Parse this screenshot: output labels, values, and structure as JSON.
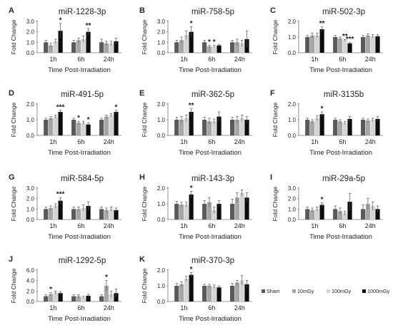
{
  "figure": {
    "series_names": [
      "Sham",
      "10mGy",
      "100mGy",
      "1000mGy"
    ],
    "series_colors": [
      "#5a5a5a",
      "#a6a6a6",
      "#d4d4d4",
      "#0d0d0d"
    ],
    "xlabel": "Time Post-Irradiation",
    "ylabel": "Fold Change"
  },
  "chart_data": [
    {
      "type": "bar",
      "panel_letter": "A",
      "title": "miR-1228-3p",
      "categories": [
        "1h",
        "6h",
        "24h"
      ],
      "series": [
        {
          "name": "Sham",
          "values": [
            1.0,
            1.0,
            1.0
          ]
        },
        {
          "name": "10mGy",
          "values": [
            0.7,
            1.2,
            0.9
          ]
        },
        {
          "name": "100mGy",
          "values": [
            1.1,
            1.3,
            0.9
          ]
        },
        {
          "name": "1000mGy",
          "values": [
            2.1,
            2.0,
            1.1
          ]
        }
      ],
      "errors": [
        [
          0.2,
          0.2,
          0.3
        ],
        [
          0.2,
          0.2,
          0.2
        ],
        [
          0.2,
          0.3,
          0.2
        ],
        [
          0.7,
          0.3,
          0.3
        ]
      ],
      "significance": [
        [
          "",
          "",
          "",
          "*"
        ],
        [
          "",
          "",
          "",
          "**"
        ],
        [
          "",
          "",
          "",
          ""
        ]
      ],
      "yticks": [
        "0.0",
        "1.0",
        "2.0",
        "3.0"
      ],
      "ylim": [
        0,
        3
      ]
    },
    {
      "type": "bar",
      "panel_letter": "B",
      "title": "miR-758-5p",
      "categories": [
        "1h",
        "6h",
        "24h"
      ],
      "series": [
        {
          "name": "Sham",
          "values": [
            1.0,
            1.0,
            1.0
          ]
        },
        {
          "name": "10mGy",
          "values": [
            1.2,
            0.6,
            1.0
          ]
        },
        {
          "name": "100mGy",
          "values": [
            1.7,
            0.6,
            0.9
          ]
        },
        {
          "name": "1000mGy",
          "values": [
            2.0,
            0.7,
            1.3
          ]
        }
      ],
      "errors": [
        [
          0.2,
          0.2,
          0.2
        ],
        [
          0.3,
          0.1,
          0.3
        ],
        [
          0.4,
          0.1,
          0.3
        ],
        [
          0.5,
          0.1,
          0.8
        ]
      ],
      "significance": [
        [
          "",
          "",
          "",
          "*"
        ],
        [
          "",
          "*",
          "*",
          ""
        ],
        [
          "",
          "",
          "",
          ""
        ]
      ],
      "yticks": [
        "0.0",
        "1.0",
        "2.0",
        "3.0"
      ],
      "ylim": [
        0,
        3
      ]
    },
    {
      "type": "bar",
      "panel_letter": "C",
      "title": "miR-502-3p",
      "categories": [
        "1h",
        "6h",
        "24h"
      ],
      "series": [
        {
          "name": "Sham",
          "values": [
            1.0,
            1.0,
            1.0
          ]
        },
        {
          "name": "10mGy",
          "values": [
            1.1,
            0.9,
            1.1
          ]
        },
        {
          "name": "100mGy",
          "values": [
            1.1,
            0.8,
            1.05
          ]
        },
        {
          "name": "1000mGy",
          "values": [
            1.5,
            0.6,
            1.05
          ]
        }
      ],
      "errors": [
        [
          0.1,
          0.1,
          0.1
        ],
        [
          0.15,
          0.1,
          0.1
        ],
        [
          0.15,
          0.05,
          0.1
        ],
        [
          0.15,
          0.05,
          0.1
        ]
      ],
      "significance": [
        [
          "",
          "",
          "",
          "**"
        ],
        [
          "",
          "",
          "**",
          "***"
        ],
        [
          "",
          "",
          "",
          ""
        ]
      ],
      "yticks": [
        "0.0",
        "1.0",
        "2.0"
      ],
      "ylim": [
        0,
        2
      ]
    },
    {
      "type": "bar",
      "panel_letter": "D",
      "title": "miR-491-5p",
      "categories": [
        "1h",
        "6h",
        "24h"
      ],
      "series": [
        {
          "name": "Sham",
          "values": [
            1.0,
            1.0,
            1.0
          ]
        },
        {
          "name": "10mGy",
          "values": [
            1.1,
            0.8,
            1.2
          ]
        },
        {
          "name": "100mGy",
          "values": [
            1.2,
            0.8,
            1.3
          ]
        },
        {
          "name": "1000mGy",
          "values": [
            1.5,
            0.7,
            1.5
          ]
        }
      ],
      "errors": [
        [
          0.1,
          0.1,
          0.1
        ],
        [
          0.1,
          0.1,
          0.1
        ],
        [
          0.1,
          0.1,
          0.1
        ],
        [
          0.1,
          0.1,
          0.1
        ]
      ],
      "significance": [
        [
          "",
          "",
          "",
          "***"
        ],
        [
          "",
          "*",
          "",
          "*"
        ],
        [
          "",
          "",
          "",
          "*"
        ]
      ],
      "yticks": [
        "0.0",
        "1.0",
        "2.0"
      ],
      "ylim": [
        0,
        2
      ]
    },
    {
      "type": "bar",
      "panel_letter": "E",
      "title": "miR-362-5p",
      "categories": [
        "1h",
        "6h",
        "24h"
      ],
      "series": [
        {
          "name": "Sham",
          "values": [
            1.0,
            1.0,
            1.0
          ]
        },
        {
          "name": "10mGy",
          "values": [
            1.0,
            0.9,
            1.0
          ]
        },
        {
          "name": "100mGy",
          "values": [
            1.1,
            0.9,
            1.1
          ]
        },
        {
          "name": "1000mGy",
          "values": [
            1.5,
            1.2,
            1.0
          ]
        }
      ],
      "errors": [
        [
          0.15,
          0.15,
          0.15
        ],
        [
          0.2,
          0.2,
          0.2
        ],
        [
          0.2,
          0.15,
          0.2
        ],
        [
          0.2,
          0.3,
          0.2
        ]
      ],
      "significance": [
        [
          "",
          "",
          "",
          "**"
        ],
        [
          "",
          "",
          "",
          ""
        ],
        [
          "",
          "",
          "",
          ""
        ]
      ],
      "yticks": [
        "0.0",
        "1.0",
        "2.0"
      ],
      "ylim": [
        0,
        2
      ]
    },
    {
      "type": "bar",
      "panel_letter": "F",
      "title": "miR-3135b",
      "categories": [
        "1h",
        "6h",
        "24h"
      ],
      "series": [
        {
          "name": "Sham",
          "values": [
            1.0,
            1.0,
            1.0
          ]
        },
        {
          "name": "10mGy",
          "values": [
            0.9,
            0.9,
            0.95
          ]
        },
        {
          "name": "100mGy",
          "values": [
            1.1,
            0.8,
            1.0
          ]
        },
        {
          "name": "1000mGy",
          "values": [
            1.35,
            1.05,
            1.05
          ]
        }
      ],
      "errors": [
        [
          0.1,
          0.1,
          0.1
        ],
        [
          0.1,
          0.1,
          0.1
        ],
        [
          0.15,
          0.1,
          0.1
        ],
        [
          0.15,
          0.15,
          0.15
        ]
      ],
      "significance": [
        [
          "",
          "",
          "",
          "*"
        ],
        [
          "",
          "",
          "",
          ""
        ],
        [
          "",
          "",
          "",
          ""
        ]
      ],
      "yticks": [
        "0.0",
        "1.0",
        "2.0"
      ],
      "ylim": [
        0,
        2
      ]
    },
    {
      "type": "bar",
      "panel_letter": "G",
      "title": "miR-584-5p",
      "categories": [
        "1h",
        "6h",
        "24h"
      ],
      "series": [
        {
          "name": "Sham",
          "values": [
            1.0,
            1.0,
            1.0
          ]
        },
        {
          "name": "10mGy",
          "values": [
            1.1,
            1.0,
            0.9
          ]
        },
        {
          "name": "100mGy",
          "values": [
            1.3,
            1.1,
            1.0
          ]
        },
        {
          "name": "1000mGy",
          "values": [
            1.8,
            1.3,
            0.9
          ]
        }
      ],
      "errors": [
        [
          0.2,
          0.2,
          0.2
        ],
        [
          0.2,
          0.2,
          0.2
        ],
        [
          0.2,
          0.3,
          0.2
        ],
        [
          0.3,
          0.4,
          0.2
        ]
      ],
      "significance": [
        [
          "",
          "",
          "",
          "***"
        ],
        [
          "",
          "",
          "",
          ""
        ],
        [
          "",
          "",
          "",
          ""
        ]
      ],
      "yticks": [
        "0.0",
        "1.0",
        "2.0",
        "3.0"
      ],
      "ylim": [
        0,
        3
      ]
    },
    {
      "type": "bar",
      "panel_letter": "H",
      "title": "miR-143-3p",
      "categories": [
        "1h",
        "6h",
        "24h"
      ],
      "series": [
        {
          "name": "Sham",
          "values": [
            1.0,
            1.0,
            1.0
          ]
        },
        {
          "name": "10mGy",
          "values": [
            0.95,
            1.1,
            1.4
          ]
        },
        {
          "name": "100mGy",
          "values": [
            0.95,
            0.6,
            1.7
          ]
        },
        {
          "name": "1000mGy",
          "values": [
            1.6,
            1.0,
            1.4
          ]
        }
      ],
      "errors": [
        [
          0.15,
          0.2,
          0.3
        ],
        [
          0.15,
          0.3,
          0.3
        ],
        [
          0.15,
          0.2,
          0.2
        ],
        [
          0.2,
          0.2,
          0.3
        ]
      ],
      "significance": [
        [
          "",
          "",
          "",
          "*"
        ],
        [
          "",
          "",
          "",
          ""
        ],
        [
          "",
          "",
          "",
          ""
        ]
      ],
      "yticks": [
        "0.0",
        "1.0",
        "2.0"
      ],
      "ylim": [
        0,
        2
      ]
    },
    {
      "type": "bar",
      "panel_letter": "I",
      "title": "miR-29a-5p",
      "categories": [
        "1h",
        "6h",
        "24h"
      ],
      "series": [
        {
          "name": "Sham",
          "values": [
            1.0,
            1.0,
            1.0
          ]
        },
        {
          "name": "10mGy",
          "values": [
            0.9,
            0.8,
            1.5
          ]
        },
        {
          "name": "100mGy",
          "values": [
            1.0,
            0.6,
            1.3
          ]
        },
        {
          "name": "1000mGy",
          "values": [
            1.4,
            1.7,
            1.0
          ]
        }
      ],
      "errors": [
        [
          0.2,
          0.3,
          0.4
        ],
        [
          0.2,
          0.3,
          0.5
        ],
        [
          0.2,
          0.2,
          0.4
        ],
        [
          0.2,
          0.8,
          0.3
        ]
      ],
      "significance": [
        [
          "",
          "",
          "",
          "*"
        ],
        [
          "",
          "",
          "",
          ""
        ],
        [
          "",
          "",
          "",
          ""
        ]
      ],
      "yticks": [
        "0.0",
        "1.0",
        "2.0",
        "3.0"
      ],
      "ylim": [
        0,
        3
      ]
    },
    {
      "type": "bar",
      "panel_letter": "J",
      "title": "miR-1292-5p",
      "categories": [
        "1h",
        "6h",
        "24h"
      ],
      "series": [
        {
          "name": "Sham",
          "values": [
            1.0,
            1.0,
            1.0
          ]
        },
        {
          "name": "10mGy",
          "values": [
            1.4,
            1.0,
            3.0
          ]
        },
        {
          "name": "100mGy",
          "values": [
            1.7,
            0.8,
            1.4
          ]
        },
        {
          "name": "1000mGy",
          "values": [
            1.6,
            1.1,
            1.6
          ]
        }
      ],
      "errors": [
        [
          0.3,
          0.3,
          0.3
        ],
        [
          0.3,
          0.3,
          1.0
        ],
        [
          0.3,
          0.2,
          0.6
        ],
        [
          0.3,
          0.3,
          0.8
        ]
      ],
      "significance": [
        [
          "",
          "*",
          "",
          ""
        ],
        [
          "",
          "",
          "",
          ""
        ],
        [
          "",
          "*",
          "",
          ""
        ]
      ],
      "yticks": [
        "0.0",
        "2.0",
        "4.0",
        "6.0"
      ],
      "ylim": [
        0,
        6
      ]
    },
    {
      "type": "bar",
      "panel_letter": "K",
      "title": "miR-370-3p",
      "categories": [
        "1h",
        "6h",
        "24h"
      ],
      "series": [
        {
          "name": "Sham",
          "values": [
            1.0,
            1.0,
            1.0
          ]
        },
        {
          "name": "10mGy",
          "values": [
            1.1,
            1.0,
            1.2
          ]
        },
        {
          "name": "100mGy",
          "values": [
            1.45,
            0.95,
            1.35
          ]
        },
        {
          "name": "1000mGy",
          "values": [
            1.7,
            0.9,
            1.1
          ]
        }
      ],
      "errors": [
        [
          0.15,
          0.1,
          0.15
        ],
        [
          0.15,
          0.1,
          0.15
        ],
        [
          0.15,
          0.1,
          0.3
        ],
        [
          0.15,
          0.1,
          0.25
        ]
      ],
      "significance": [
        [
          "",
          "",
          "",
          "*"
        ],
        [
          "",
          "",
          "",
          ""
        ],
        [
          "",
          "",
          "",
          ""
        ]
      ],
      "yticks": [
        "0.0",
        "1.0",
        "2.0"
      ],
      "ylim": [
        0,
        2
      ]
    }
  ]
}
